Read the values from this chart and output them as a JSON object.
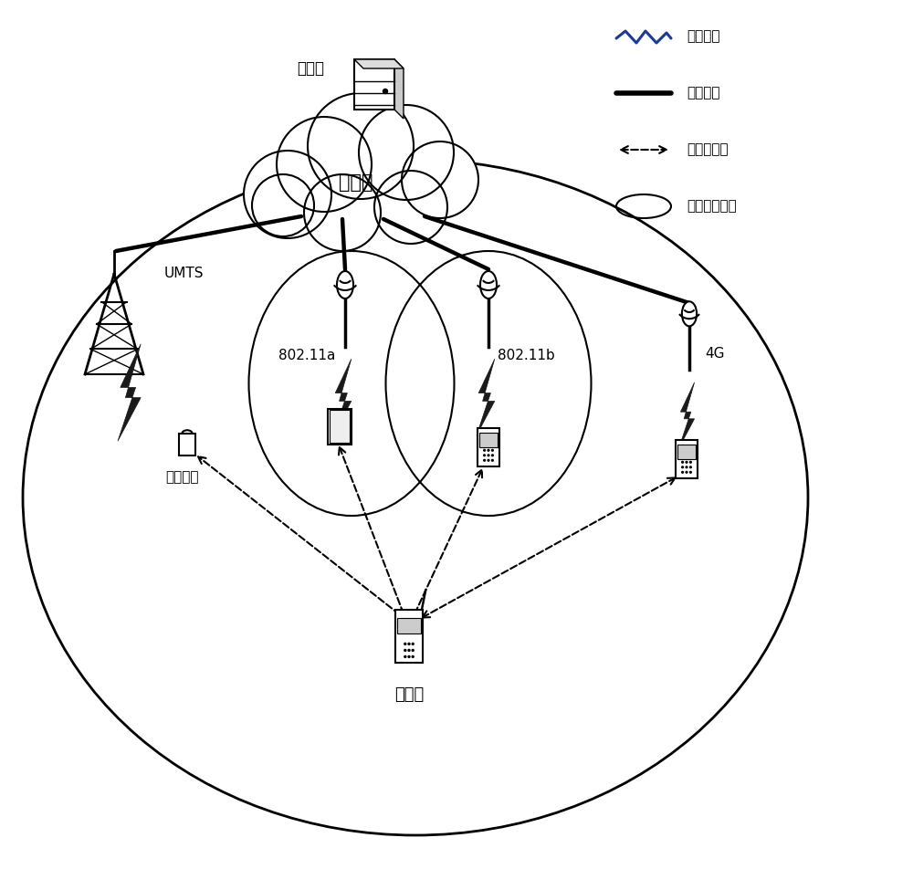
{
  "bg_color": "#ffffff",
  "labels": {
    "server": "服务器",
    "internet": "互联网",
    "umts": "UMTS",
    "wifi_a": "802.11a",
    "wifi_b": "802.11b",
    "g4": "4G",
    "collab_terminal": "协同终端",
    "client": "客户端"
  },
  "legend": {
    "wireless": "无线连接",
    "wired": "有线连接",
    "short_range": "短距离传输",
    "coverage": "网络覆盖范围"
  },
  "colors": {
    "black": "#000000",
    "blue": "#1a3a9c",
    "gray": "#888888",
    "light_gray": "#cccccc"
  },
  "layout": {
    "figw": 10.0,
    "figh": 9.75,
    "dpi": 100
  }
}
